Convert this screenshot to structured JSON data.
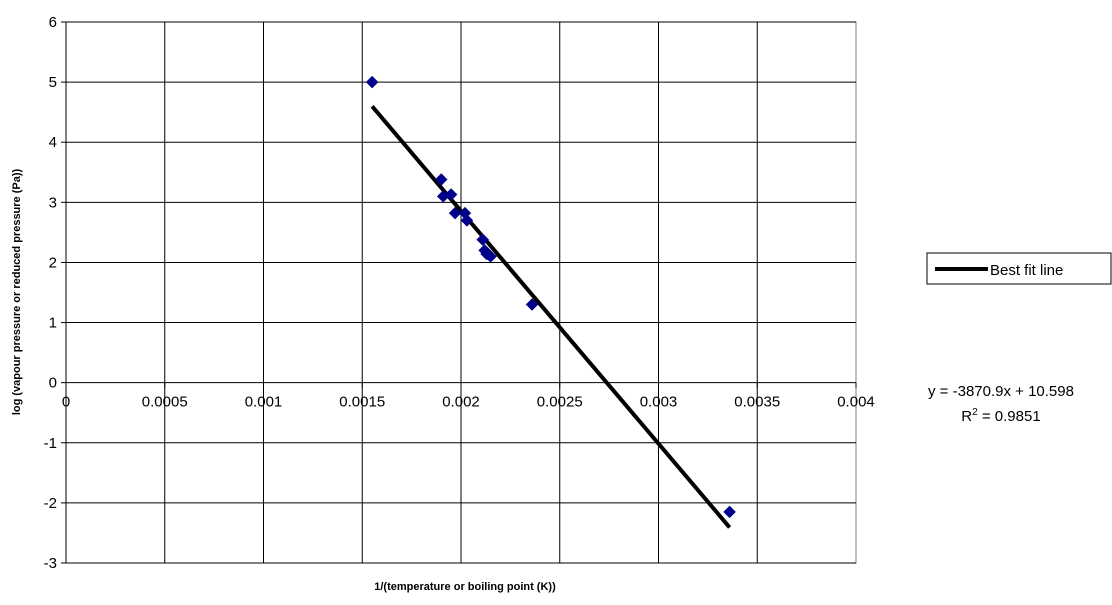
{
  "chart_data": {
    "type": "scatter",
    "title": "",
    "xlabel": "1/(temperature or boiling point (K))",
    "ylabel": "log (vapour pressure or reduced pressure (Pa))",
    "xlim": [
      0,
      0.004
    ],
    "ylim": [
      -3,
      6
    ],
    "x_ticks": [
      0,
      0.0005,
      0.001,
      0.0015,
      0.002,
      0.0025,
      0.003,
      0.0035,
      0.004
    ],
    "x_tick_labels": [
      "0",
      "0.0005",
      "0.001",
      "0.0015",
      "0.002",
      "0.0025",
      "0.003",
      "0.0035",
      "0.004"
    ],
    "y_ticks": [
      -3,
      -2,
      -1,
      0,
      1,
      2,
      3,
      4,
      5,
      6
    ],
    "y_tick_labels": [
      "-3",
      "-2",
      "-1",
      "0",
      "1",
      "2",
      "3",
      "4",
      "5",
      "6"
    ],
    "grid": true,
    "points": {
      "marker": "diamond",
      "color": "#00008B",
      "x": [
        0.00155,
        0.0019,
        0.00191,
        0.00195,
        0.00197,
        0.00202,
        0.00203,
        0.00211,
        0.00212,
        0.00213,
        0.00215,
        0.00236,
        0.00336
      ],
      "y": [
        5.0,
        3.38,
        3.1,
        3.13,
        2.82,
        2.82,
        2.7,
        2.38,
        2.2,
        2.14,
        2.1,
        1.3,
        -2.15
      ]
    },
    "series": [
      {
        "name": "Best fit line",
        "type": "line",
        "color": "#000000",
        "x": [
          0.00155,
          0.00336
        ],
        "y": [
          4.598,
          -2.408
        ]
      }
    ],
    "legend": {
      "position": "right",
      "entries": [
        "Best fit line"
      ]
    },
    "annotations": {
      "equation": "y = -3870.9x + 10.598",
      "r2_prefix": "R",
      "r2_sup": "2",
      "r2_suffix": " = 0.9851"
    }
  }
}
